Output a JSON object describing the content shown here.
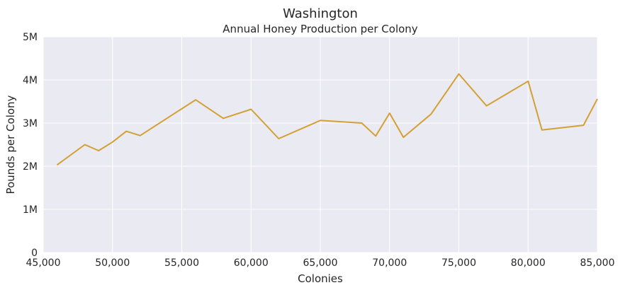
{
  "chart_data": {
    "type": "line",
    "title": "Washington",
    "subtitle": "Annual Honey Production per Colony",
    "xlabel": "Colonies",
    "ylabel": "Pounds per Colony",
    "xlim": [
      45000,
      85000
    ],
    "ylim": [
      0,
      5000000
    ],
    "x_ticks": [
      45000,
      50000,
      55000,
      60000,
      65000,
      70000,
      75000,
      80000,
      85000
    ],
    "x_tick_labels": [
      "45,000",
      "50,000",
      "55,000",
      "60,000",
      "65,000",
      "70,000",
      "75,000",
      "80,000",
      "85,000"
    ],
    "y_ticks": [
      0,
      1000000,
      2000000,
      3000000,
      4000000,
      5000000
    ],
    "y_tick_labels": [
      "0",
      "1M",
      "2M",
      "3M",
      "4M",
      "5M"
    ],
    "grid": true,
    "series": [
      {
        "name": "Washington",
        "color": "#d4a035",
        "x": [
          46000,
          48000,
          49000,
          50000,
          51000,
          52000,
          56000,
          58000,
          60000,
          62000,
          65000,
          68000,
          69000,
          70000,
          71000,
          73000,
          75000,
          77000,
          80000,
          81000,
          84000,
          85000
        ],
        "y": [
          2030000,
          2500000,
          2360000,
          2560000,
          2810000,
          2710000,
          3540000,
          3110000,
          3320000,
          2640000,
          3060000,
          3000000,
          2700000,
          3230000,
          2670000,
          3210000,
          4140000,
          3400000,
          3970000,
          2840000,
          2950000,
          3560000
        ]
      }
    ]
  }
}
